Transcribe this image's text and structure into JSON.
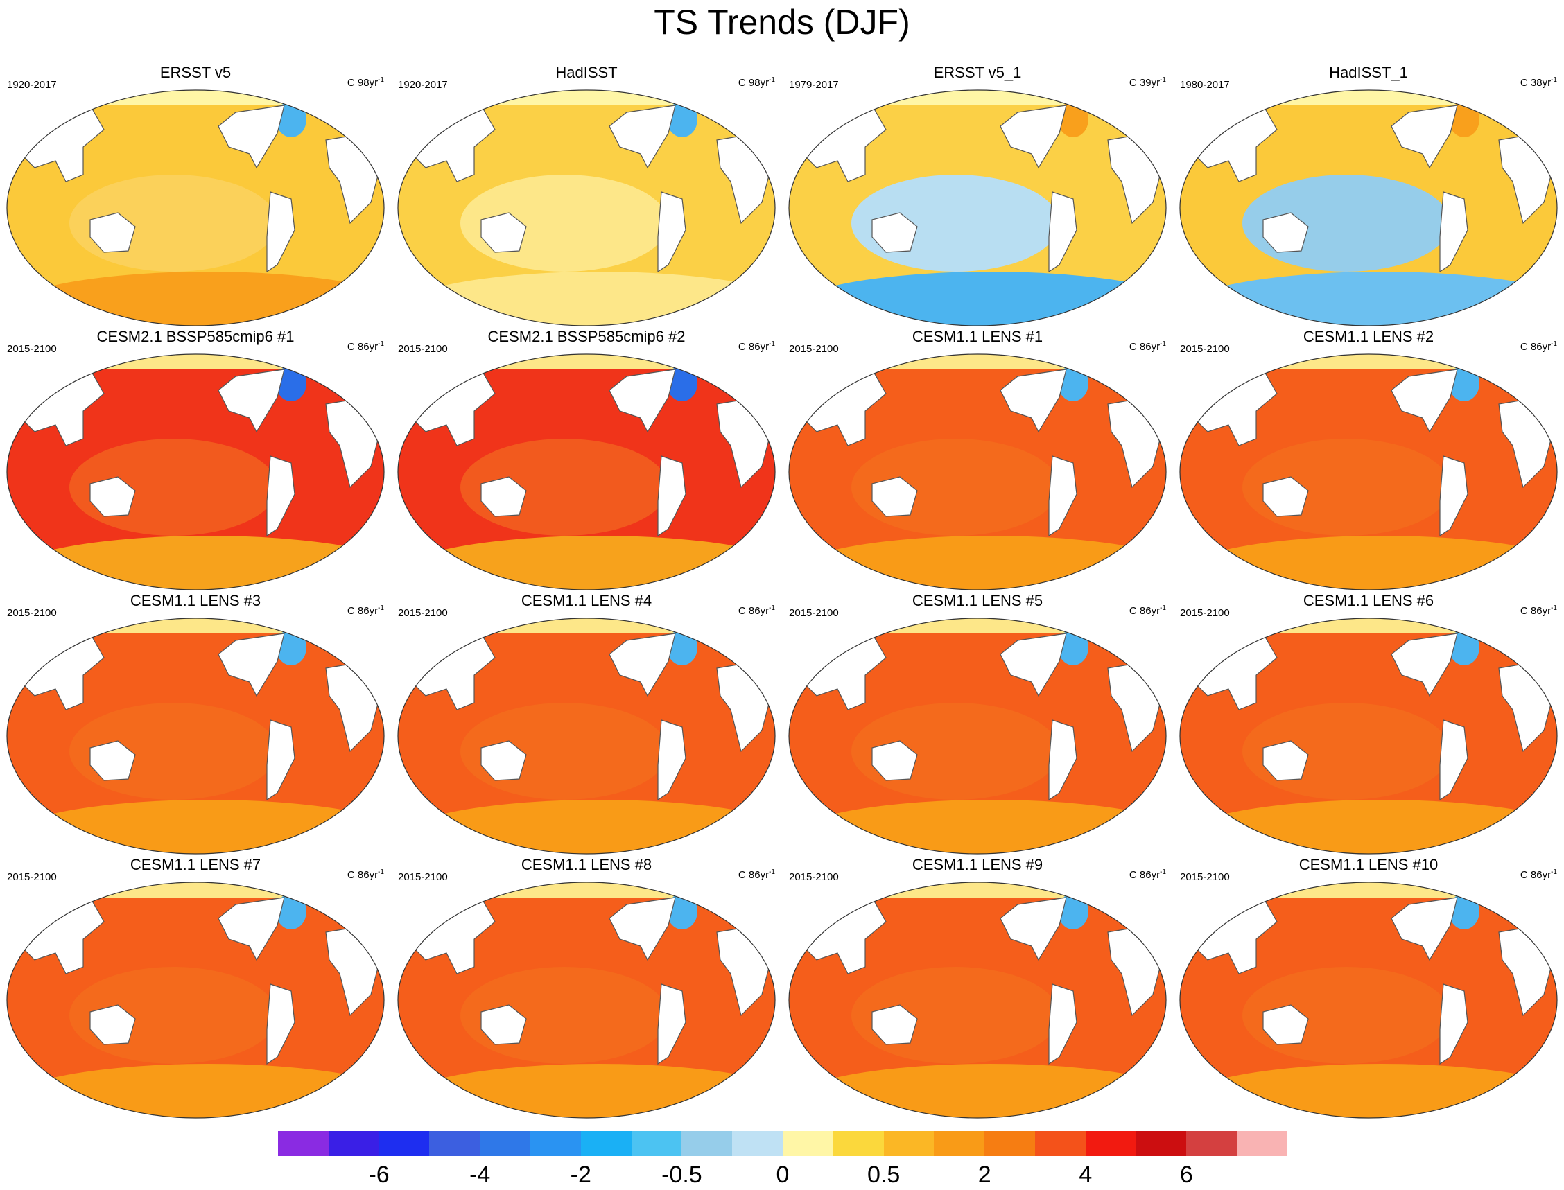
{
  "figure": {
    "title": "TS Trends (DJF)"
  },
  "panels": [
    {
      "title": "ERSST v5",
      "left": "1920-2017",
      "units_prefix": "C 98yr",
      "units_sup": "-1",
      "scheme": "obs_warm"
    },
    {
      "title": "HadISST",
      "left": "1920-2017",
      "units_prefix": "C 98yr",
      "units_sup": "-1",
      "scheme": "obs_mixed"
    },
    {
      "title": "ERSST v5_1",
      "left": "1979-2017",
      "units_prefix": "C 39yr",
      "units_sup": "-1",
      "scheme": "obs_cool"
    },
    {
      "title": "HadISST_1",
      "left": "1980-2017",
      "units_prefix": "C 38yr",
      "units_sup": "-1",
      "scheme": "obs_cool2"
    },
    {
      "title": "CESM2.1 BSSP585cmip6 #1",
      "left": "2015-2100",
      "units_prefix": "C 86yr",
      "units_sup": "-1",
      "scheme": "cesm2"
    },
    {
      "title": "CESM2.1 BSSP585cmip6 #2",
      "left": "2015-2100",
      "units_prefix": "C 86yr",
      "units_sup": "-1",
      "scheme": "cesm2"
    },
    {
      "title": "CESM1.1 LENS #1",
      "left": "2015-2100",
      "units_prefix": "C 86yr",
      "units_sup": "-1",
      "scheme": "lens"
    },
    {
      "title": "CESM1.1 LENS #2",
      "left": "2015-2100",
      "units_prefix": "C 86yr",
      "units_sup": "-1",
      "scheme": "lens"
    },
    {
      "title": "CESM1.1 LENS #3",
      "left": "2015-2100",
      "units_prefix": "C 86yr",
      "units_sup": "-1",
      "scheme": "lens"
    },
    {
      "title": "CESM1.1 LENS #4",
      "left": "2015-2100",
      "units_prefix": "C 86yr",
      "units_sup": "-1",
      "scheme": "lens"
    },
    {
      "title": "CESM1.1 LENS #5",
      "left": "2015-2100",
      "units_prefix": "C 86yr",
      "units_sup": "-1",
      "scheme": "lens"
    },
    {
      "title": "CESM1.1 LENS #6",
      "left": "2015-2100",
      "units_prefix": "C 86yr",
      "units_sup": "-1",
      "scheme": "lens"
    },
    {
      "title": "CESM1.1 LENS #7",
      "left": "2015-2100",
      "units_prefix": "C 86yr",
      "units_sup": "-1",
      "scheme": "lens"
    },
    {
      "title": "CESM1.1 LENS #8",
      "left": "2015-2100",
      "units_prefix": "C 86yr",
      "units_sup": "-1",
      "scheme": "lens"
    },
    {
      "title": "CESM1.1 LENS #9",
      "left": "2015-2100",
      "units_prefix": "C 86yr",
      "units_sup": "-1",
      "scheme": "lens"
    },
    {
      "title": "CESM1.1 LENS #10",
      "left": "2015-2100",
      "units_prefix": "C 86yr",
      "units_sup": "-1",
      "scheme": "lens"
    }
  ],
  "colorbar": {
    "colors": [
      "#8a2be2",
      "#3a1fe6",
      "#1e2ef0",
      "#3c5fe0",
      "#2f78e8",
      "#2a93f2",
      "#1ab0f5",
      "#4cc3f2",
      "#96cdea",
      "#bfe1f4",
      "#fff6a6",
      "#fbd83c",
      "#fbb725",
      "#f99b17",
      "#f67d12",
      "#f4521a",
      "#f21a10",
      "#cc0e10",
      "#d44040",
      "#f9b3b3"
    ],
    "labels": [
      "-6",
      "-4",
      "-2",
      "-0.5",
      "0",
      "0.5",
      "2",
      "4",
      "6"
    ],
    "label_boundaries": [
      2,
      4,
      6,
      8,
      10,
      12,
      14,
      16,
      18
    ]
  },
  "schemes": {
    "obs_warm": {
      "ocean": "#fbc93a",
      "pac": "#fbd15a",
      "south": "#f9a01c",
      "north": "#fff6a6",
      "spot": "#4cb4ef"
    },
    "obs_mixed": {
      "ocean": "#fbd046",
      "pac": "#fde789",
      "south": "#fde789",
      "north": "#fff6a6",
      "spot": "#4cb4ef"
    },
    "obs_cool": {
      "ocean": "#fbd046",
      "pac": "#b8def2",
      "south": "#4cb4ef",
      "north": "#fff6a6",
      "spot": "#f9a01c"
    },
    "obs_cool2": {
      "ocean": "#fbc93a",
      "pac": "#96cdea",
      "south": "#6cc0f0",
      "north": "#fff6a6",
      "spot": "#f9a01c"
    },
    "cesm2": {
      "ocean": "#f0341a",
      "pac": "#f25a1e",
      "south": "#f7a21c",
      "north": "#fde789",
      "spot": "#2a6ee8"
    },
    "lens": {
      "ocean": "#f55e1b",
      "pac": "#f46a1c",
      "south": "#f99b17",
      "north": "#fde789",
      "spot": "#4cb4ef"
    }
  }
}
